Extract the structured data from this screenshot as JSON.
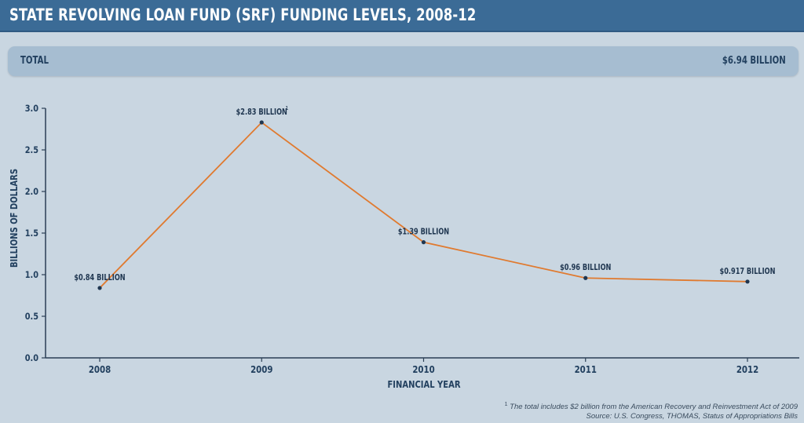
{
  "header": {
    "title": "STATE REVOLVING LOAN FUND (SRF) FUNDING LEVELS, 2008-12"
  },
  "total": {
    "label": "TOTAL",
    "value": "$6.94 BILLION"
  },
  "chart_data": {
    "type": "line",
    "title": "STATE REVOLVING LOAN FUND (SRF) FUNDING LEVELS, 2008-12",
    "xlabel": "FINANCIAL YEAR",
    "ylabel": "BILLIONS OF DOLLARS",
    "ylim": [
      0,
      3.0
    ],
    "yticks": [
      "0.0",
      "0.5",
      "1.0",
      "1.5",
      "2.0",
      "2.5",
      "3.0"
    ],
    "categories": [
      "2008",
      "2009",
      "2010",
      "2011",
      "2012"
    ],
    "values": [
      0.84,
      2.83,
      1.39,
      0.96,
      0.917
    ],
    "data_labels": [
      "$0.84 BILLION",
      "$2.83 BILLION",
      "$1.39 BILLION",
      "$0.96 BILLION",
      "$0.917 BILLION"
    ],
    "annotation_marker": "1",
    "line_color": "#e07a2f",
    "point_color": "#1f3650",
    "axis_color": "#2b3f55"
  },
  "footnote": {
    "marker": "1",
    "note": "The total includes $2 billion from the American Recovery and Reinvestment Act of 2009",
    "source": "Source: U.S. Congress, THOMAS, Status of Appropriations Bills"
  }
}
